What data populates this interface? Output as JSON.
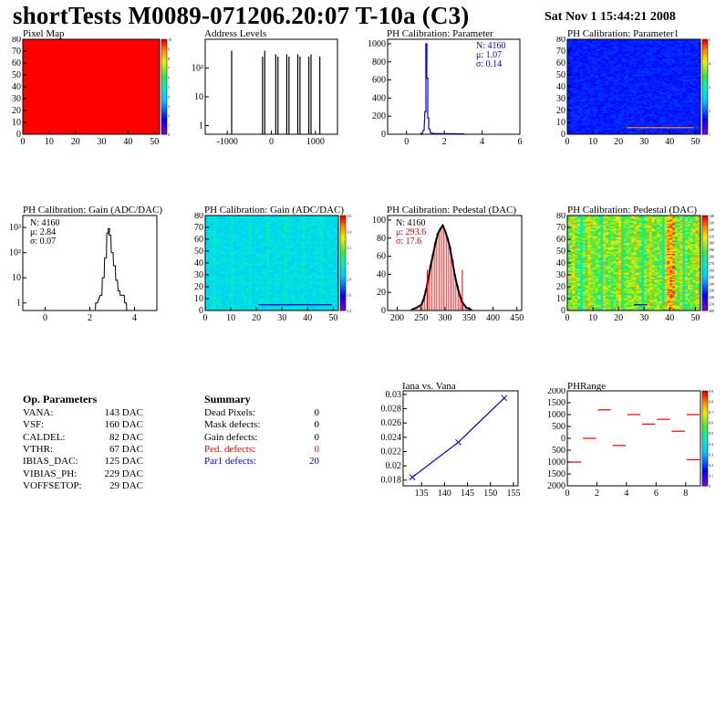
{
  "header": {
    "title": "shortTests M0089-071206.20:07 T-10a (C3)",
    "date": "Sat Nov  1 15:44:21 2008"
  },
  "panels": {
    "pixel_map": {
      "title": "Pixel Map"
    },
    "address_levels": {
      "title": "Address Levels"
    },
    "ph_param": {
      "title": "PH Calibration: Parameter",
      "stats": [
        "N: 4160",
        "μ: 1.07",
        "σ: 0.14"
      ],
      "stats_color": "#0000ee"
    },
    "ph_param1": {
      "title": "PH Calibration: Parameter1"
    },
    "gain_hist": {
      "title": "PH Calibration: Gain (ADC/DAC)",
      "stats": [
        "N: 4160",
        "μ: 2.84",
        "σ: 0.07"
      ]
    },
    "gain_map": {
      "title": "PH Calibration: Gain (ADC/DAC)"
    },
    "ped_hist": {
      "title": "PH Calibration: Pedestal (DAC)",
      "stats": [
        "N: 4160",
        "μ: 293.6",
        "σ: 17.6"
      ]
    },
    "ped_map": {
      "title": "PH Calibration: Pedestal (DAC)"
    },
    "iana": {
      "title": "Iana vs. Vana"
    },
    "phrange": {
      "title": "PHRange"
    }
  },
  "op_params": {
    "title": "Op. Parameters",
    "rows": [
      {
        "name": "VANA:",
        "value": "143 DAC"
      },
      {
        "name": "VSF:",
        "value": "160 DAC"
      },
      {
        "name": "CALDEL:",
        "value": "82 DAC"
      },
      {
        "name": "VTHR:",
        "value": "67 DAC"
      },
      {
        "name": "IBIAS_DAC:",
        "value": "125 DAC"
      },
      {
        "name": "VIBIAS_PH:",
        "value": "229 DAC"
      },
      {
        "name": "VOFFSETOP:",
        "value": "29 DAC"
      }
    ]
  },
  "summary": {
    "title": "Summary",
    "rows": [
      {
        "name": "Dead Pixels:",
        "value": "0",
        "color": "#000000"
      },
      {
        "name": "Mask defects:",
        "value": "0",
        "color": "#000000"
      },
      {
        "name": "Gain defects:",
        "value": "0",
        "color": "#000000"
      },
      {
        "name": "Ped. defects:",
        "value": "0",
        "color": "#ee0000"
      },
      {
        "name": "Par1 defects:",
        "value": "20",
        "color": "#0000ee"
      }
    ]
  },
  "chart_data": [
    {
      "id": "pixel_map",
      "type": "heatmap",
      "x_ticks": [
        "0",
        "10",
        "20",
        "30",
        "40",
        "50"
      ],
      "y_ticks": [
        "0",
        "10",
        "20",
        "30",
        "40",
        "50",
        "60",
        "70",
        "80"
      ],
      "xlim": [
        0,
        52
      ],
      "ylim": [
        0,
        80
      ],
      "uniform_value": 10,
      "z_ticks": [
        "0",
        "1",
        "2",
        "3",
        "4",
        "5",
        "6",
        "7",
        "8",
        "9",
        "10"
      ]
    },
    {
      "id": "address_levels",
      "type": "bar",
      "y_scale": "log",
      "x_ticks": [
        "-1000",
        "0",
        "1000"
      ],
      "y_ticks": [
        "1",
        "10",
        "10²"
      ],
      "xlim": [
        -1500,
        1500
      ],
      "ylim": [
        0.5,
        1000
      ],
      "peaks": [
        {
          "x": -900,
          "y": 400
        },
        {
          "x": -200,
          "y": 250
        },
        {
          "x": -150,
          "y": 400
        },
        {
          "x": 100,
          "y": 300
        },
        {
          "x": 150,
          "y": 250
        },
        {
          "x": 350,
          "y": 300
        },
        {
          "x": 400,
          "y": 250
        },
        {
          "x": 600,
          "y": 300
        },
        {
          "x": 650,
          "y": 250
        },
        {
          "x": 850,
          "y": 250
        },
        {
          "x": 900,
          "y": 300
        },
        {
          "x": 1100,
          "y": 250
        }
      ]
    },
    {
      "id": "ph_param",
      "type": "bar",
      "x_ticks": [
        "0",
        "2",
        "4",
        "6"
      ],
      "y_ticks": [
        "0",
        "200",
        "400",
        "600",
        "800",
        "1000"
      ],
      "xlim": [
        -1,
        6
      ],
      "ylim": [
        0,
        1050
      ],
      "x": [
        0.8,
        0.9,
        1.0,
        1.05,
        1.1,
        1.15,
        1.2,
        1.3,
        1.4,
        3.0
      ],
      "values": [
        10,
        40,
        250,
        1000,
        620,
        180,
        60,
        15,
        8,
        4
      ]
    },
    {
      "id": "ph_param1",
      "type": "heatmap",
      "x_ticks": [
        "0",
        "10",
        "20",
        "30",
        "40",
        "50"
      ],
      "y_ticks": [
        "0",
        "10",
        "20",
        "30",
        "40",
        "50",
        "60",
        "70",
        "80"
      ],
      "xlim": [
        0,
        52
      ],
      "ylim": [
        0,
        80
      ],
      "z_ticks": [
        "1",
        "2",
        "3",
        "4",
        "5"
      ]
    },
    {
      "id": "gain_hist",
      "type": "bar",
      "y_scale": "log",
      "x_ticks": [
        "0",
        "2",
        "4"
      ],
      "y_ticks": [
        "1",
        "10",
        "10²",
        "10³"
      ],
      "xlim": [
        -1,
        5
      ],
      "ylim": [
        0.5,
        3000
      ],
      "x": [
        2.3,
        2.5,
        2.6,
        2.7,
        2.8,
        2.85,
        2.9,
        3.0,
        3.1,
        3.2,
        3.3,
        3.4,
        3.5,
        3.6
      ],
      "values": [
        1,
        2,
        10,
        60,
        600,
        900,
        500,
        100,
        30,
        8,
        3,
        2,
        2,
        1
      ]
    },
    {
      "id": "gain_map",
      "type": "heatmap",
      "x_ticks": [
        "0",
        "10",
        "20",
        "30",
        "40",
        "50"
      ],
      "y_ticks": [
        "0",
        "10",
        "20",
        "30",
        "40",
        "50",
        "60",
        "70",
        "80"
      ],
      "xlim": [
        0,
        52
      ],
      "ylim": [
        0,
        80
      ],
      "z_ticks": [
        "2.4",
        "2.6",
        "2.8",
        "3",
        "3.2",
        "3.4",
        "3.6"
      ]
    },
    {
      "id": "ped_hist",
      "type": "bar",
      "x_ticks": [
        "200",
        "250",
        "300",
        "350",
        "400",
        "450"
      ],
      "y_ticks": [
        "0",
        "20",
        "40",
        "60",
        "80",
        "100"
      ],
      "xlim": [
        180,
        460
      ],
      "ylim": [
        0,
        105
      ],
      "x": [
        230,
        240,
        250,
        255,
        260,
        265,
        270,
        275,
        280,
        285,
        290,
        295,
        300,
        305,
        310,
        315,
        320,
        325,
        330,
        335,
        340,
        345,
        350,
        355
      ],
      "values": [
        1,
        3,
        6,
        12,
        22,
        35,
        50,
        62,
        75,
        85,
        90,
        94,
        88,
        80,
        70,
        55,
        40,
        28,
        18,
        10,
        6,
        3,
        2,
        1
      ],
      "markers": [
        {
          "x": 263,
          "y": 45
        },
        {
          "x": 336,
          "y": 45
        }
      ]
    },
    {
      "id": "ped_map",
      "type": "heatmap",
      "x_ticks": [
        "0",
        "10",
        "20",
        "30",
        "40",
        "50"
      ],
      "y_ticks": [
        "0",
        "10",
        "20",
        "30",
        "40",
        "50",
        "60",
        "70",
        "80"
      ],
      "xlim": [
        0,
        52
      ],
      "ylim": [
        0,
        80
      ],
      "z_ticks": [
        "200",
        "210",
        "220",
        "230",
        "240",
        "250",
        "260",
        "270",
        "280",
        "290",
        "300",
        "310",
        "320",
        "330",
        "340"
      ]
    },
    {
      "id": "iana",
      "type": "line",
      "x_ticks": [
        "135",
        "140",
        "145",
        "150",
        "155"
      ],
      "y_ticks": [
        "0.018",
        "0.02",
        "0.022",
        "0.024",
        "0.026",
        "0.028",
        "0.03"
      ],
      "xlim": [
        131,
        156
      ],
      "ylim": [
        0.0172,
        0.0305
      ],
      "x": [
        133,
        143,
        153
      ],
      "values": [
        0.0184,
        0.0233,
        0.0295
      ]
    },
    {
      "id": "phrange",
      "type": "heatmap",
      "x_ticks": [
        "0",
        "2",
        "4",
        "6",
        "8"
      ],
      "y_ticks": [
        "2000",
        "1500",
        "1000",
        "500",
        "0",
        "500",
        "1000",
        "1500",
        "2000"
      ],
      "xlim": [
        0,
        9
      ],
      "ylim": [
        -2000,
        2000
      ],
      "segments": [
        {
          "x0": 0,
          "x1": 1,
          "y": -1000
        },
        {
          "x0": 1,
          "x1": 2,
          "y": 0
        },
        {
          "x0": 2,
          "x1": 3,
          "y": 1200
        },
        {
          "x0": 3,
          "x1": 4,
          "y": -300
        },
        {
          "x0": 4,
          "x1": 5,
          "y": 1000
        },
        {
          "x0": 5,
          "x1": 6,
          "y": 600
        },
        {
          "x0": 6,
          "x1": 7,
          "y": 800
        },
        {
          "x0": 7,
          "x1": 8,
          "y": 300
        },
        {
          "x0": 8,
          "x1": 9,
          "y": -900
        },
        {
          "x0": 8,
          "x1": 9,
          "y": 1000
        }
      ],
      "z_ticks": [
        "0",
        "0.1",
        "0.2",
        "0.3",
        "0.4",
        "0.5",
        "0.6",
        "0.7",
        "0.8",
        "0.9"
      ]
    }
  ]
}
